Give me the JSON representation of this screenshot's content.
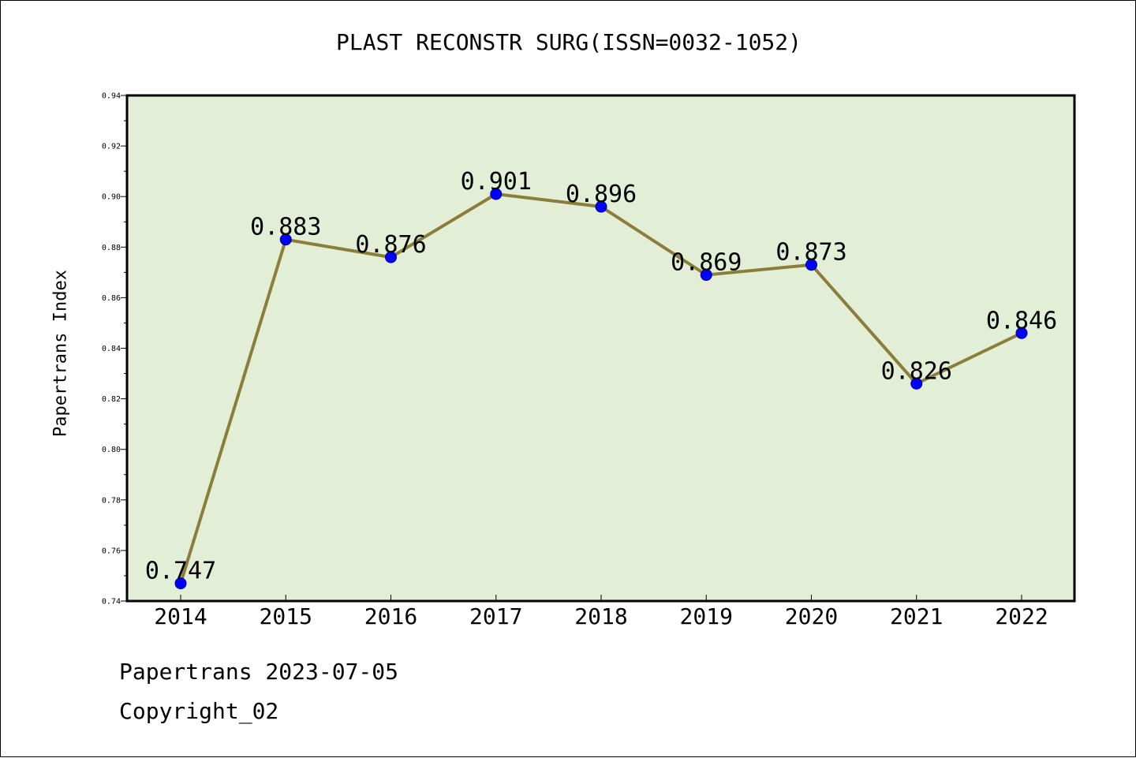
{
  "chart_data": {
    "type": "line",
    "title": "PLAST RECONSTR SURG(ISSN=0032-1052)",
    "ylabel": "Papertrans Index",
    "xlabel": "",
    "categories": [
      "2014",
      "2015",
      "2016",
      "2017",
      "2018",
      "2019",
      "2020",
      "2021",
      "2022"
    ],
    "series": [
      {
        "values": [
          0.747,
          0.883,
          0.876,
          0.901,
          0.896,
          0.869,
          0.873,
          0.826,
          0.846
        ],
        "data_labels": [
          "0.747",
          "0.883",
          "0.876",
          "0.901",
          "0.896",
          "0.869",
          "0.873",
          "0.826",
          "0.846"
        ]
      }
    ],
    "ylim": [
      0.74,
      0.94
    ],
    "yticks": [
      "0.74",
      "0.76",
      "0.78",
      "0.80",
      "0.82",
      "0.84",
      "0.86",
      "0.88",
      "0.90",
      "0.92",
      "0.94"
    ],
    "grid": false,
    "legend": "none",
    "colors": {
      "plot_background": "#e2efd6",
      "line": "#8b7d3a",
      "marker": "#0000ff",
      "axis": "#000000"
    }
  },
  "footer": {
    "line1": "Papertrans 2023-07-05",
    "line2": "Copyright_02"
  }
}
